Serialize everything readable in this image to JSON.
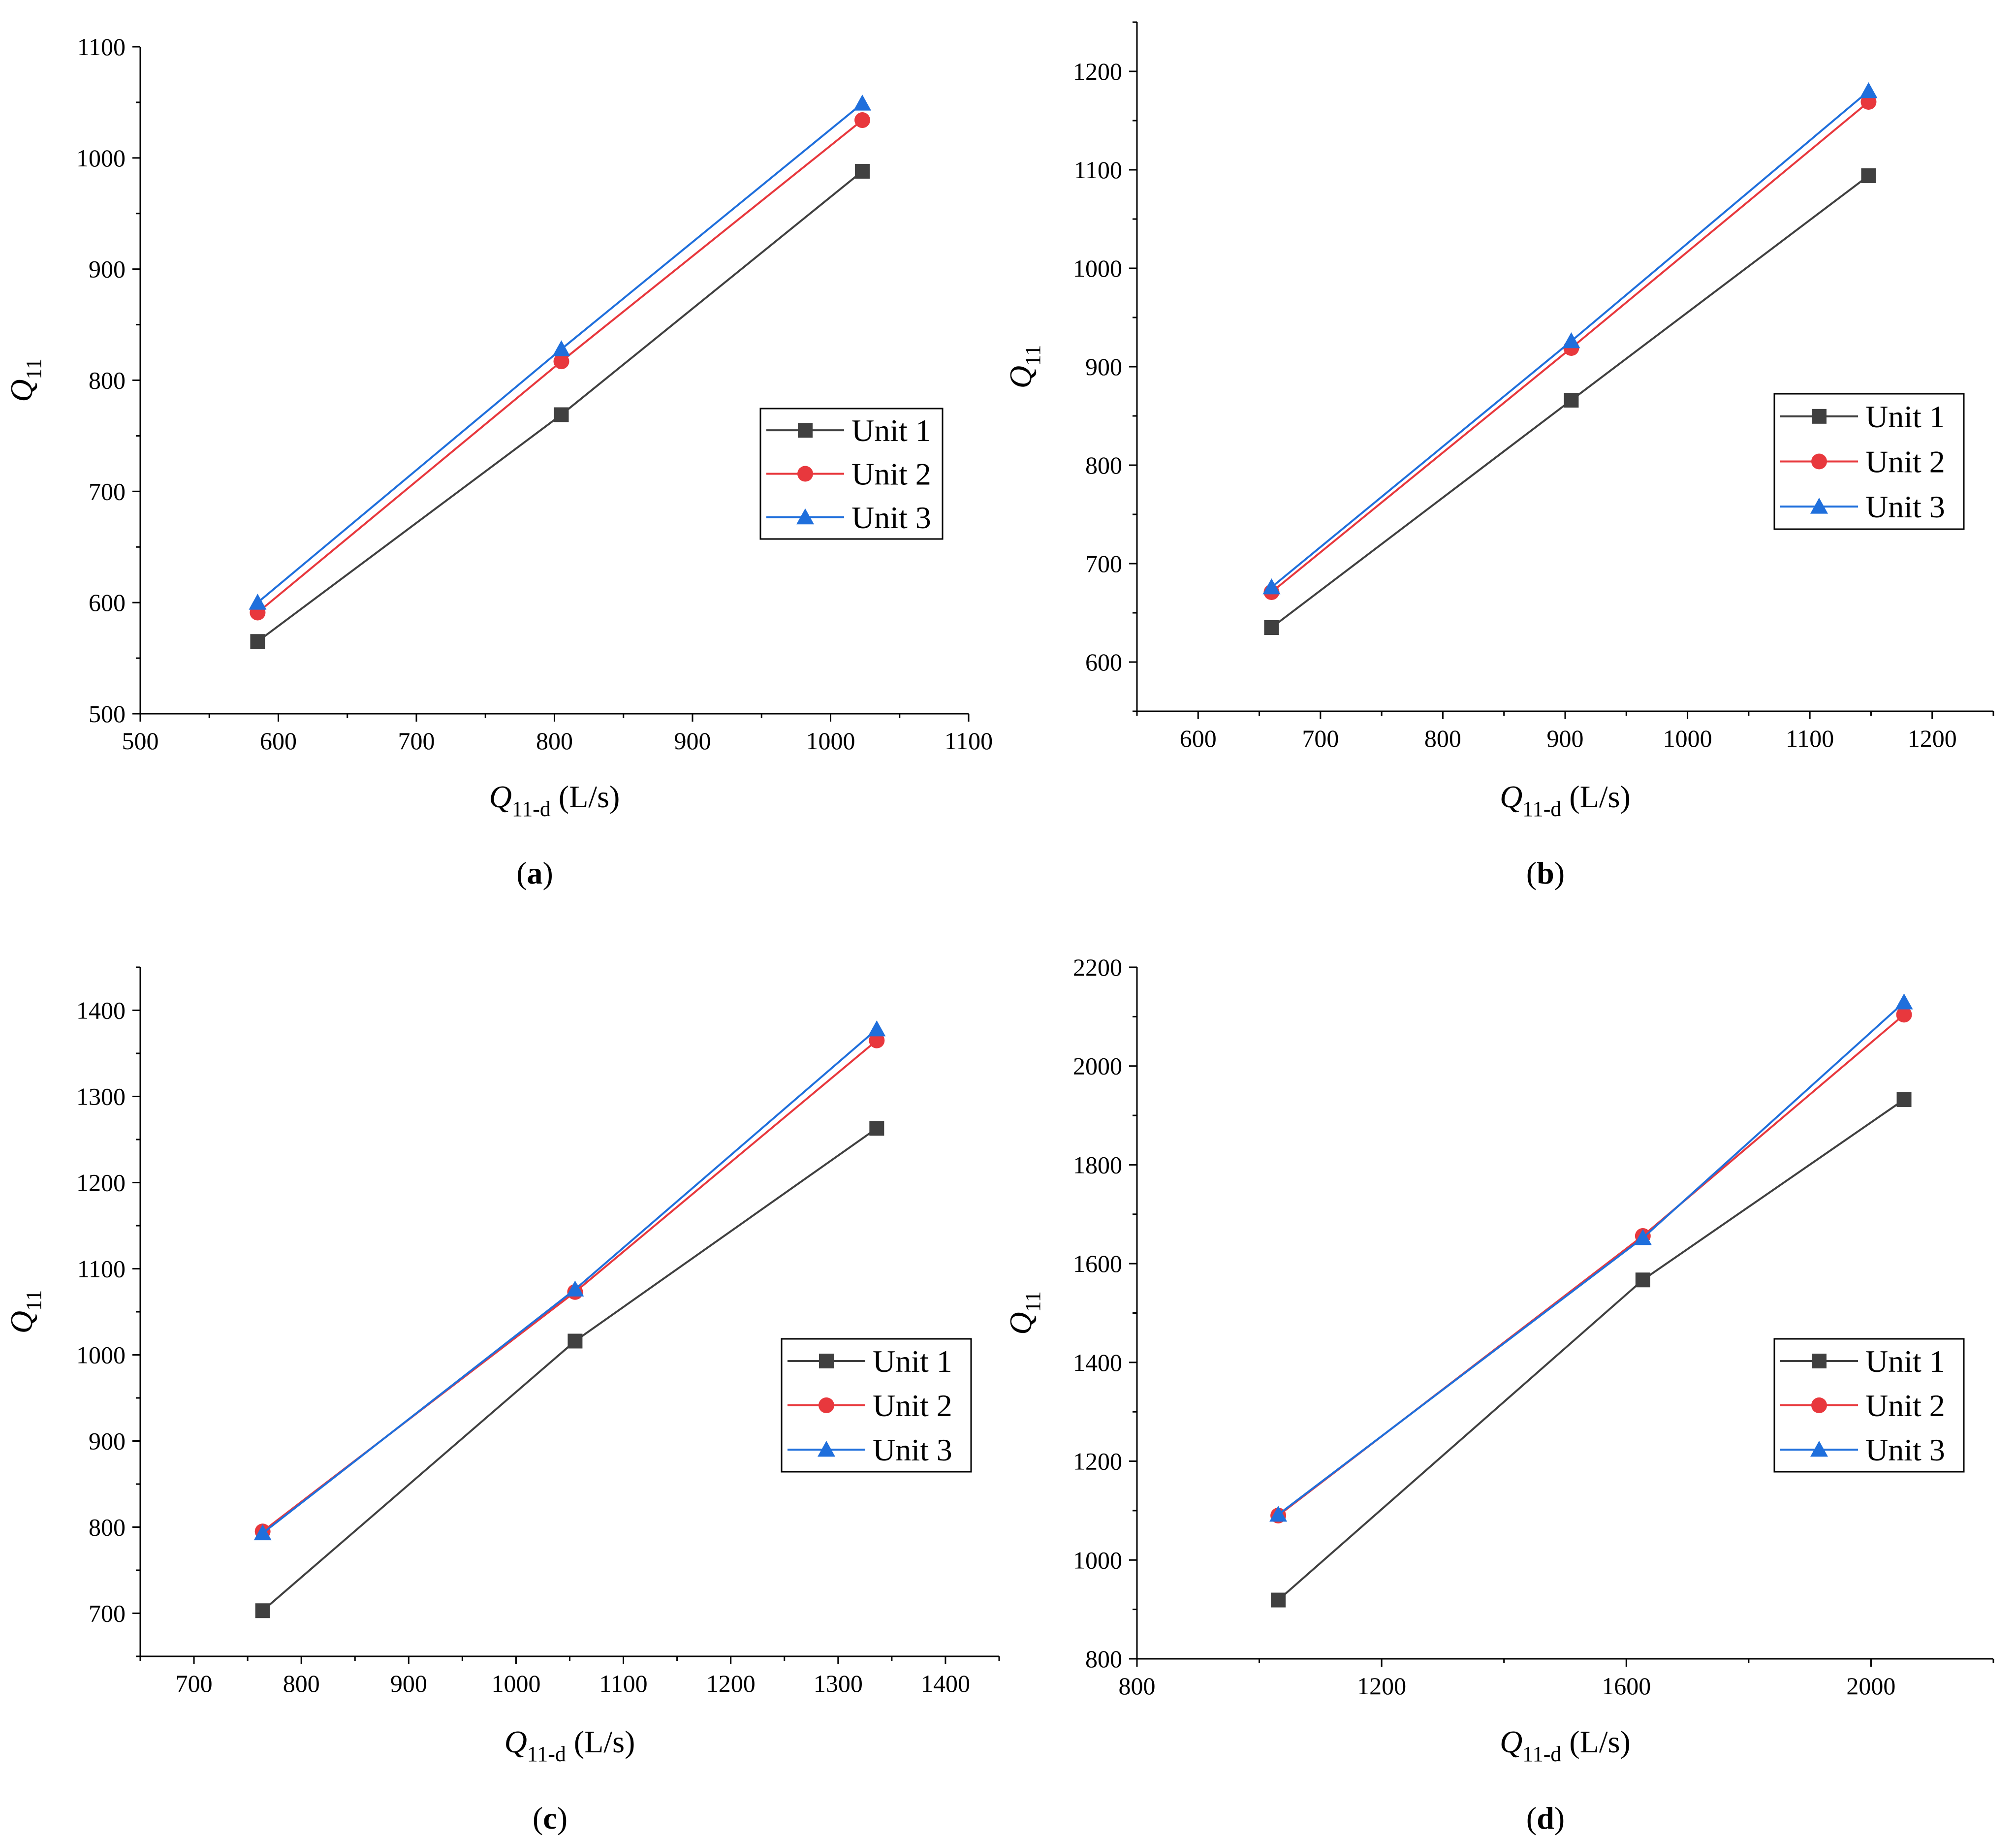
{
  "chart_data": [
    {
      "type": "line",
      "panel_label": "a",
      "xlabel": {
        "symbol": "Q",
        "subscript": "11-d",
        "unit": " (L/s)"
      },
      "ylabel": {
        "symbol": "Q",
        "subscript": "11"
      },
      "xlim": [
        500,
        1100
      ],
      "ylim": [
        500,
        1100
      ],
      "xticks": [
        500,
        600,
        700,
        800,
        900,
        1000,
        1100
      ],
      "yticks": [
        500,
        600,
        700,
        800,
        900,
        1000,
        1100
      ],
      "legend": "center-right",
      "series": [
        {
          "name": "Unit 1",
          "x": [
            585,
            805,
            1023
          ],
          "y": [
            565,
            769,
            988
          ]
        },
        {
          "name": "Unit 2",
          "x": [
            585,
            805,
            1023
          ],
          "y": [
            591,
            817,
            1034
          ]
        },
        {
          "name": "Unit 3",
          "x": [
            585,
            805,
            1023
          ],
          "y": [
            600,
            828,
            1049
          ]
        }
      ]
    },
    {
      "type": "line",
      "panel_label": "b",
      "xlabel": {
        "symbol": "Q",
        "subscript": "11-d",
        "unit": " (L/s)"
      },
      "ylabel": {
        "symbol": "Q",
        "subscript": "11"
      },
      "xlim": [
        550,
        1250
      ],
      "ylim": [
        550,
        1250
      ],
      "xticks": [
        600,
        700,
        800,
        900,
        1000,
        1100,
        1200
      ],
      "yticks": [
        600,
        700,
        800,
        900,
        1000,
        1100,
        1200
      ],
      "legend": "center-right",
      "series": [
        {
          "name": "Unit 1",
          "x": [
            660,
            905,
            1148
          ],
          "y": [
            635,
            866,
            1094
          ]
        },
        {
          "name": "Unit 2",
          "x": [
            660,
            905,
            1148
          ],
          "y": [
            671,
            919,
            1169
          ]
        },
        {
          "name": "Unit 3",
          "x": [
            660,
            905,
            1148
          ],
          "y": [
            676,
            926,
            1180
          ]
        }
      ]
    },
    {
      "type": "line",
      "panel_label": "c",
      "xlabel": {
        "symbol": "Q",
        "subscript": "11-d",
        "unit": " (L/s)"
      },
      "ylabel": {
        "symbol": "Q",
        "subscript": "11"
      },
      "xlim": [
        650,
        1450
      ],
      "ylim": [
        650,
        1450
      ],
      "xticks": [
        700,
        800,
        900,
        1000,
        1100,
        1200,
        1300,
        1400
      ],
      "yticks": [
        700,
        800,
        900,
        1000,
        1100,
        1200,
        1300,
        1400
      ],
      "legend": "center-right",
      "series": [
        {
          "name": "Unit 1",
          "x": [
            764,
            1055,
            1336
          ],
          "y": [
            703,
            1016,
            1263
          ]
        },
        {
          "name": "Unit 2",
          "x": [
            764,
            1055,
            1336
          ],
          "y": [
            795,
            1073,
            1365
          ]
        },
        {
          "name": "Unit 3",
          "x": [
            764,
            1055,
            1336
          ],
          "y": [
            793,
            1076,
            1378
          ]
        }
      ]
    },
    {
      "type": "line",
      "panel_label": "d",
      "xlabel": {
        "symbol": "Q",
        "subscript": "11-d",
        "unit": " (L/s)"
      },
      "ylabel": {
        "symbol": "Q",
        "subscript": "11"
      },
      "xlim": [
        800,
        2200
      ],
      "ylim": [
        800,
        2200
      ],
      "xticks": [
        800,
        1200,
        1600,
        2000
      ],
      "yticks": [
        800,
        1000,
        1200,
        1400,
        1600,
        1800,
        2000,
        2200
      ],
      "legend": "center-right",
      "series": [
        {
          "name": "Unit 1",
          "x": [
            1031,
            1627,
            2054
          ],
          "y": [
            919,
            1567,
            1932
          ]
        },
        {
          "name": "Unit 2",
          "x": [
            1031,
            1627,
            2054
          ],
          "y": [
            1090,
            1656,
            2104
          ]
        },
        {
          "name": "Unit 3",
          "x": [
            1031,
            1627,
            2054
          ],
          "y": [
            1092,
            1652,
            2129
          ]
        }
      ]
    }
  ],
  "series_styles": {
    "Unit 1": {
      "color": "#404040",
      "marker": "square"
    },
    "Unit 2": {
      "color": "#e8383d",
      "marker": "circle"
    },
    "Unit 3": {
      "color": "#1f6fdc",
      "marker": "triangle"
    }
  }
}
